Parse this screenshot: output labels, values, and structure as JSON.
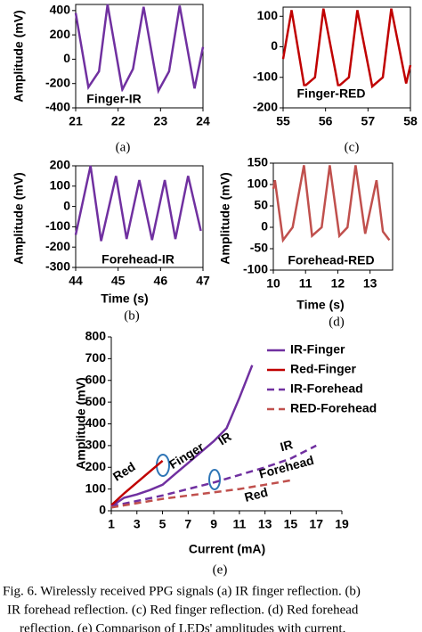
{
  "chart_data": [
    {
      "type": "line",
      "y_label": "Amplitude (mV)",
      "annotation": "Finger-IR",
      "caption": "(a)",
      "x": [
        21.0,
        21.3,
        21.55,
        21.75,
        22.1,
        22.35,
        22.6,
        22.95,
        23.2,
        23.45,
        23.8,
        24.0
      ],
      "series": [
        {
          "color": "#7030a0",
          "values": [
            380,
            -230,
            -100,
            450,
            -250,
            -80,
            430,
            -260,
            -100,
            440,
            -240,
            100
          ]
        }
      ],
      "xlim": [
        21,
        24
      ],
      "xticks": [
        21,
        22,
        23,
        24
      ],
      "ylim": [
        -400,
        450
      ],
      "yticks": [
        -400,
        -200,
        0,
        200,
        400
      ]
    },
    {
      "type": "line",
      "annotation": "Finger-RED",
      "caption": "(c)",
      "x": [
        55.0,
        55.2,
        55.5,
        55.75,
        55.95,
        56.3,
        56.55,
        56.75,
        57.1,
        57.35,
        57.55,
        57.9,
        58.0
      ],
      "series": [
        {
          "color": "#c00000",
          "values": [
            -40,
            120,
            -130,
            -100,
            125,
            -130,
            -100,
            120,
            -130,
            -100,
            125,
            -120,
            -60
          ]
        }
      ],
      "xlim": [
        55,
        58
      ],
      "xticks": [
        55,
        56,
        57,
        58
      ],
      "ylim": [
        -200,
        130
      ],
      "yticks": [
        -200,
        -100,
        0,
        100
      ]
    },
    {
      "type": "line",
      "y_label": "Amplitude (mV)",
      "x_label": "Time (s)",
      "annotation": "Forehead-IR",
      "caption": "(b)",
      "x": [
        44.0,
        44.35,
        44.6,
        44.95,
        45.2,
        45.5,
        45.8,
        46.1,
        46.35,
        46.65,
        46.95
      ],
      "series": [
        {
          "color": "#7030a0",
          "values": [
            -140,
            200,
            -170,
            150,
            -160,
            130,
            -165,
            130,
            -160,
            150,
            -120
          ]
        }
      ],
      "xlim": [
        44,
        47
      ],
      "xticks": [
        44,
        45,
        46,
        47
      ],
      "ylim": [
        -300,
        200
      ],
      "yticks": [
        -300,
        -200,
        -100,
        0,
        100,
        200
      ]
    },
    {
      "type": "line",
      "y_label": "Amplitude (mV)",
      "x_label": "Time (s)",
      "annotation": "Forehead-RED",
      "caption": "(d)",
      "x": [
        10.0,
        10.05,
        10.3,
        10.6,
        10.95,
        11.2,
        11.5,
        11.75,
        12.05,
        12.3,
        12.55,
        12.85,
        13.2,
        13.4,
        13.6
      ],
      "series": [
        {
          "color": "#c0504d",
          "values": [
            90,
            110,
            -30,
            0,
            145,
            -20,
            0,
            145,
            -20,
            0,
            145,
            -15,
            110,
            -10,
            -30
          ]
        }
      ],
      "xlim": [
        10,
        13.7
      ],
      "xticks": [
        10,
        11,
        12,
        13
      ],
      "ylim": [
        -100,
        150
      ],
      "yticks": [
        -100,
        -50,
        0,
        50,
        100,
        150
      ]
    },
    {
      "type": "line",
      "y_label": "Amplitude (mV)",
      "x_label": "Current (mA)",
      "caption": "(e)",
      "annotations": [
        "Finger",
        "Red",
        "IR",
        "Forehead",
        "IR",
        "Red"
      ],
      "series": [
        {
          "name": "IR-Finger",
          "color": "#7030a0",
          "dashed": false,
          "x": [
            1,
            2,
            3,
            4,
            5,
            6,
            7,
            8,
            9,
            10,
            11,
            12
          ],
          "values": [
            20,
            60,
            75,
            95,
            120,
            170,
            220,
            270,
            320,
            380,
            520,
            670
          ]
        },
        {
          "name": "Red-Finger",
          "color": "#c00000",
          "dashed": false,
          "x": [
            1,
            2,
            3,
            4,
            5
          ],
          "values": [
            25,
            80,
            130,
            180,
            230
          ]
        },
        {
          "name": "IR-Forehead",
          "color": "#7030a0",
          "dashed": true,
          "x": [
            1,
            3,
            5,
            7,
            9,
            11,
            13,
            15,
            17
          ],
          "values": [
            20,
            45,
            70,
            100,
            130,
            165,
            200,
            240,
            300
          ]
        },
        {
          "name": "RED-Forehead",
          "color": "#c0504d",
          "dashed": true,
          "x": [
            1,
            3,
            5,
            7,
            9,
            11,
            13,
            15
          ],
          "values": [
            15,
            35,
            55,
            70,
            85,
            100,
            120,
            140
          ]
        }
      ],
      "xlim": [
        1,
        19
      ],
      "xticks": [
        1,
        3,
        5,
        7,
        9,
        11,
        13,
        15,
        17,
        19
      ],
      "ylim": [
        0,
        800
      ],
      "yticks": [
        0,
        100,
        200,
        300,
        400,
        500,
        600,
        700,
        800
      ]
    }
  ],
  "figure_caption": [
    "Fig. 6. Wirelessly received PPG signals (a) IR finger reflection. (b)",
    "IR forehead reflection. (c) Red finger reflection. (d) Red forehead",
    "reflection. (e) Comparison of LEDs' amplitudes with current."
  ]
}
